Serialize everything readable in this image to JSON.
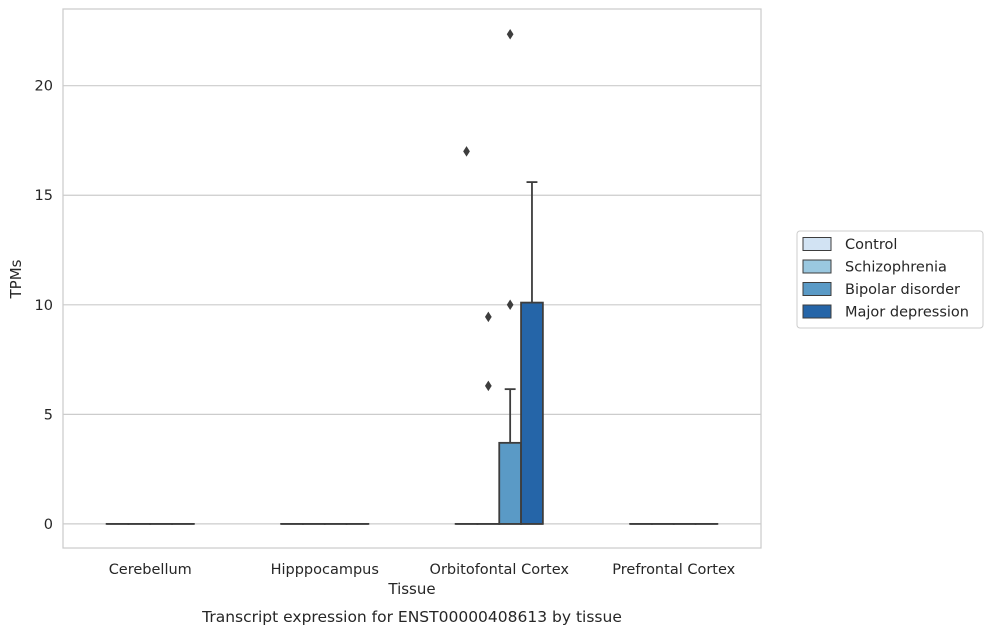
{
  "chart_data": {
    "type": "box",
    "title": "",
    "xlabel": "Tissue",
    "ylabel": "TPMs",
    "caption": "Transcript expression for ENST00000408613 by tissue",
    "categories": [
      "Cerebellum",
      "Hipppocampus",
      "Orbitofontal Cortex",
      "Prefrontal Cortex"
    ],
    "ylim": [
      -1.1,
      23.5
    ],
    "yticks": [
      0,
      5,
      10,
      15,
      20
    ],
    "grid": "horizontal",
    "legend_position": "right",
    "series": [
      {
        "name": "Control",
        "color": "#d2e3f3",
        "boxes": [
          {
            "q1": 0,
            "median": 0,
            "q3": 0,
            "whisker_low": 0,
            "whisker_high": 0,
            "outliers": []
          },
          {
            "q1": 0,
            "median": 0,
            "q3": 0,
            "whisker_low": 0,
            "whisker_high": 0,
            "outliers": []
          },
          {
            "q1": 0,
            "median": 0,
            "q3": 0,
            "whisker_low": 0,
            "whisker_high": 0,
            "outliers": [
              17.0
            ]
          },
          {
            "q1": 0,
            "median": 0,
            "q3": 0,
            "whisker_low": 0,
            "whisker_high": 0,
            "outliers": []
          }
        ]
      },
      {
        "name": "Schizophrenia",
        "color": "#9ac8e0",
        "boxes": [
          {
            "q1": 0,
            "median": 0,
            "q3": 0,
            "whisker_low": 0,
            "whisker_high": 0,
            "outliers": []
          },
          {
            "q1": 0,
            "median": 0,
            "q3": 0,
            "whisker_low": 0,
            "whisker_high": 0,
            "outliers": []
          },
          {
            "q1": 0,
            "median": 0,
            "q3": 0,
            "whisker_low": 0,
            "whisker_high": 0,
            "outliers": [
              6.3,
              9.45
            ]
          },
          {
            "q1": 0,
            "median": 0,
            "q3": 0,
            "whisker_low": 0,
            "whisker_high": 0,
            "outliers": []
          }
        ]
      },
      {
        "name": "Bipolar disorder",
        "color": "#5a9ac6",
        "boxes": [
          {
            "q1": 0,
            "median": 0,
            "q3": 0,
            "whisker_low": 0,
            "whisker_high": 0,
            "outliers": []
          },
          {
            "q1": 0,
            "median": 0,
            "q3": 0,
            "whisker_low": 0,
            "whisker_high": 0,
            "outliers": []
          },
          {
            "q1": 0,
            "median": 0,
            "q3": 3.7,
            "whisker_low": 0,
            "whisker_high": 6.15,
            "outliers": [
              10.0,
              22.35
            ]
          },
          {
            "q1": 0,
            "median": 0,
            "q3": 0,
            "whisker_low": 0,
            "whisker_high": 0,
            "outliers": []
          }
        ]
      },
      {
        "name": "Major depression",
        "color": "#2565a8",
        "boxes": [
          {
            "q1": 0,
            "median": 0,
            "q3": 0,
            "whisker_low": 0,
            "whisker_high": 0,
            "outliers": []
          },
          {
            "q1": 0,
            "median": 0,
            "q3": 0,
            "whisker_low": 0,
            "whisker_high": 0,
            "outliers": []
          },
          {
            "q1": 0,
            "median": 0,
            "q3": 10.1,
            "whisker_low": 0,
            "whisker_high": 15.6,
            "outliers": []
          },
          {
            "q1": 0,
            "median": 0,
            "q3": 0,
            "whisker_low": 0,
            "whisker_high": 0,
            "outliers": []
          }
        ]
      }
    ]
  }
}
